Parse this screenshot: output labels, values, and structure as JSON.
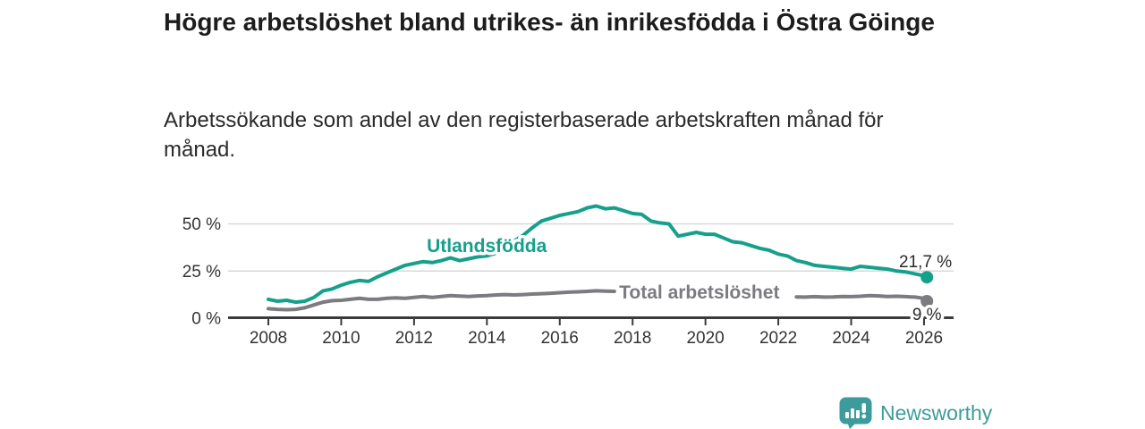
{
  "header": {
    "title": "Högre arbetslöshet bland utrikes- än inrikesfödda i Östra Göinge",
    "subtitle": "Arbetssökande som andel av den registerbaserade arbetskraften månad för månad."
  },
  "footer": {
    "brand": "Newsworthy",
    "brand_color": "#3E9B9B",
    "logo_icon": "bar-chart-speech-bubble-icon"
  },
  "colors": {
    "background": "#ffffff",
    "title_text": "#1c1c1c",
    "subtitle_text": "#2a2a2a",
    "axis": "#3b3b3b",
    "gridline": "#d9d9d9",
    "tick_label": "#333333",
    "end_label_text": "#2b2b2b",
    "series_teal": "#16A08C",
    "series_gray": "#7B7B80"
  },
  "chart_data": {
    "type": "line",
    "title": "Högre arbetslöshet bland utrikes- än inrikesfödda i Östra Göinge",
    "subtitle": "Arbetssökande som andel av den registerbaserade arbetskraften månad för månad.",
    "xlabel": "",
    "ylabel": "",
    "grid": "horizontal-only",
    "legend_position": "inline-labels",
    "ylim": [
      0,
      62
    ],
    "xlim": [
      2006.9,
      2026.85
    ],
    "x_label_ticks": [
      2008,
      2010,
      2012,
      2014,
      2016,
      2018,
      2020,
      2022,
      2024,
      2026
    ],
    "y_gridlines": [
      25,
      50
    ],
    "y_tick_labels": [
      {
        "value": 0,
        "label": "0 %"
      },
      {
        "value": 25,
        "label": "25 %"
      },
      {
        "value": 50,
        "label": "50 %"
      }
    ],
    "x": [
      2008,
      2008.25,
      2008.5,
      2008.75,
      2009,
      2009.25,
      2009.5,
      2009.75,
      2010,
      2010.25,
      2010.5,
      2010.75,
      2011,
      2011.25,
      2011.5,
      2011.75,
      2012,
      2012.25,
      2012.5,
      2012.75,
      2013,
      2013.25,
      2013.5,
      2013.75,
      2014,
      2014.25,
      2014.5,
      2014.75,
      2015,
      2015.25,
      2015.5,
      2015.75,
      2016,
      2016.25,
      2016.5,
      2016.75,
      2017,
      2017.25,
      2017.5,
      2017.75,
      2018,
      2018.25,
      2018.5,
      2018.75,
      2019,
      2019.25,
      2019.5,
      2019.75,
      2020,
      2020.25,
      2020.5,
      2020.75,
      2021,
      2021.25,
      2021.5,
      2021.75,
      2022,
      2022.25,
      2022.5,
      2022.75,
      2023,
      2023.25,
      2023.5,
      2023.75,
      2024,
      2024.25,
      2024.5,
      2024.75,
      2025,
      2025.25,
      2025.5,
      2025.75,
      2026,
      2026.08
    ],
    "series": [
      {
        "name": "Utlandsfödda",
        "color": "#16A08C",
        "values": [
          10,
          9,
          9.5,
          8.5,
          9,
          11,
          14.5,
          15.5,
          17.5,
          19,
          20,
          19.5,
          22,
          24,
          26,
          28,
          29,
          30,
          29.5,
          30.5,
          32,
          30.5,
          31.5,
          32.5,
          33,
          34.5,
          38,
          41,
          44,
          48,
          51.5,
          53,
          54.5,
          55.5,
          56.5,
          58.5,
          59.5,
          58,
          58.5,
          57,
          55.5,
          55,
          51.5,
          50.5,
          50,
          43.5,
          44.5,
          45.5,
          44.5,
          44.5,
          42.5,
          40.5,
          40,
          38.5,
          37,
          36,
          34,
          33,
          30.5,
          29.5,
          28,
          27.5,
          27,
          26.5,
          26,
          27.5,
          27,
          26.5,
          26,
          25,
          24.5,
          23.5,
          22.5,
          21.7
        ],
        "end_value": 21.7,
        "end_label": "21,7 %",
        "end_label_position": "above-right",
        "line_label": {
          "text": "Utlandsfödda",
          "x": 2012.35,
          "y": 35.1
        }
      },
      {
        "name": "Total arbetslöshet",
        "color": "#7B7B80",
        "values": [
          5,
          4.7,
          4.5,
          4.7,
          5.5,
          7,
          8.5,
          9.3,
          9.5,
          10,
          10.5,
          10,
          10,
          10.5,
          10.8,
          10.5,
          11,
          11.5,
          11,
          11.5,
          12,
          11.7,
          11.5,
          11.8,
          12,
          12.3,
          12.5,
          12.3,
          12.5,
          12.8,
          13,
          13.2,
          13.5,
          13.8,
          14,
          14.2,
          14.5,
          14.3,
          14.2,
          null,
          null,
          null,
          null,
          null,
          null,
          null,
          null,
          null,
          null,
          null,
          null,
          null,
          null,
          null,
          null,
          null,
          null,
          null,
          11.3,
          11.2,
          11.4,
          11.2,
          11.3,
          11.5,
          11.4,
          11.6,
          12,
          11.8,
          11.5,
          11.6,
          11.4,
          11.2,
          10.5,
          9
        ],
        "end_value": 9,
        "end_label": "9 %",
        "end_label_position": "below",
        "line_label": {
          "text": "Total arbetslöshet",
          "x": 2017.63,
          "y": 10.4
        }
      }
    ]
  }
}
